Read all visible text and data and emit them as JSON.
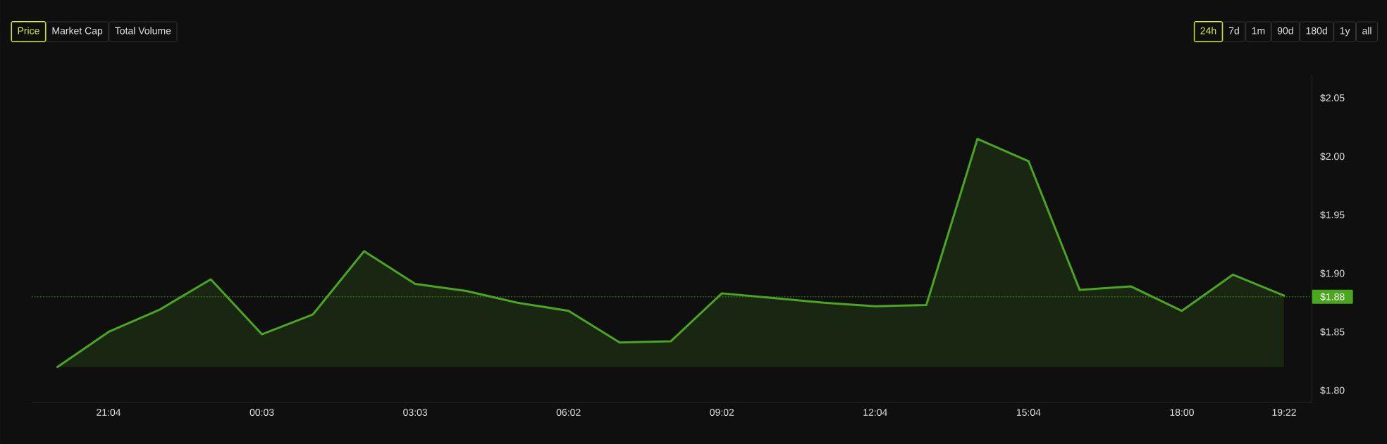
{
  "chart_data": {
    "type": "area",
    "categories": [
      null,
      "21:04",
      null,
      null,
      "00:03",
      null,
      null,
      "03:03",
      null,
      null,
      "06:02",
      null,
      null,
      "09:02",
      null,
      null,
      "12:04",
      null,
      null,
      "15:04",
      null,
      null,
      "18:00",
      null,
      "19:22"
    ],
    "values": [
      1.82,
      1.85,
      1.869,
      1.895,
      1.848,
      1.865,
      1.919,
      1.891,
      1.885,
      1.875,
      1.868,
      1.841,
      1.842,
      1.883,
      1.879,
      1.875,
      1.872,
      1.873,
      2.015,
      1.996,
      1.886,
      1.889,
      1.868,
      1.899,
      1.881
    ],
    "color": "#4ba61f",
    "ylim": [
      1.79,
      2.07
    ],
    "yticks": [
      {
        "value": 1.8,
        "label": "$1.80"
      },
      {
        "value": 1.85,
        "label": "$1.85"
      },
      {
        "value": 1.9,
        "label": "$1.90"
      },
      {
        "value": 1.95,
        "label": "$1.95"
      },
      {
        "value": 2.0,
        "label": "$2.00"
      },
      {
        "value": 2.05,
        "label": "$2.05"
      }
    ],
    "ref_lines": [
      {
        "axis": "y",
        "value": 1.88,
        "label": "$1.88",
        "color": "#4ba61f",
        "line_style": "dotted"
      }
    ],
    "annotations": [
      "Price",
      "Market Cap",
      "Total Volume",
      "24h",
      "7d",
      "1m",
      "90d",
      "180d",
      "1y",
      "all"
    ]
  }
}
